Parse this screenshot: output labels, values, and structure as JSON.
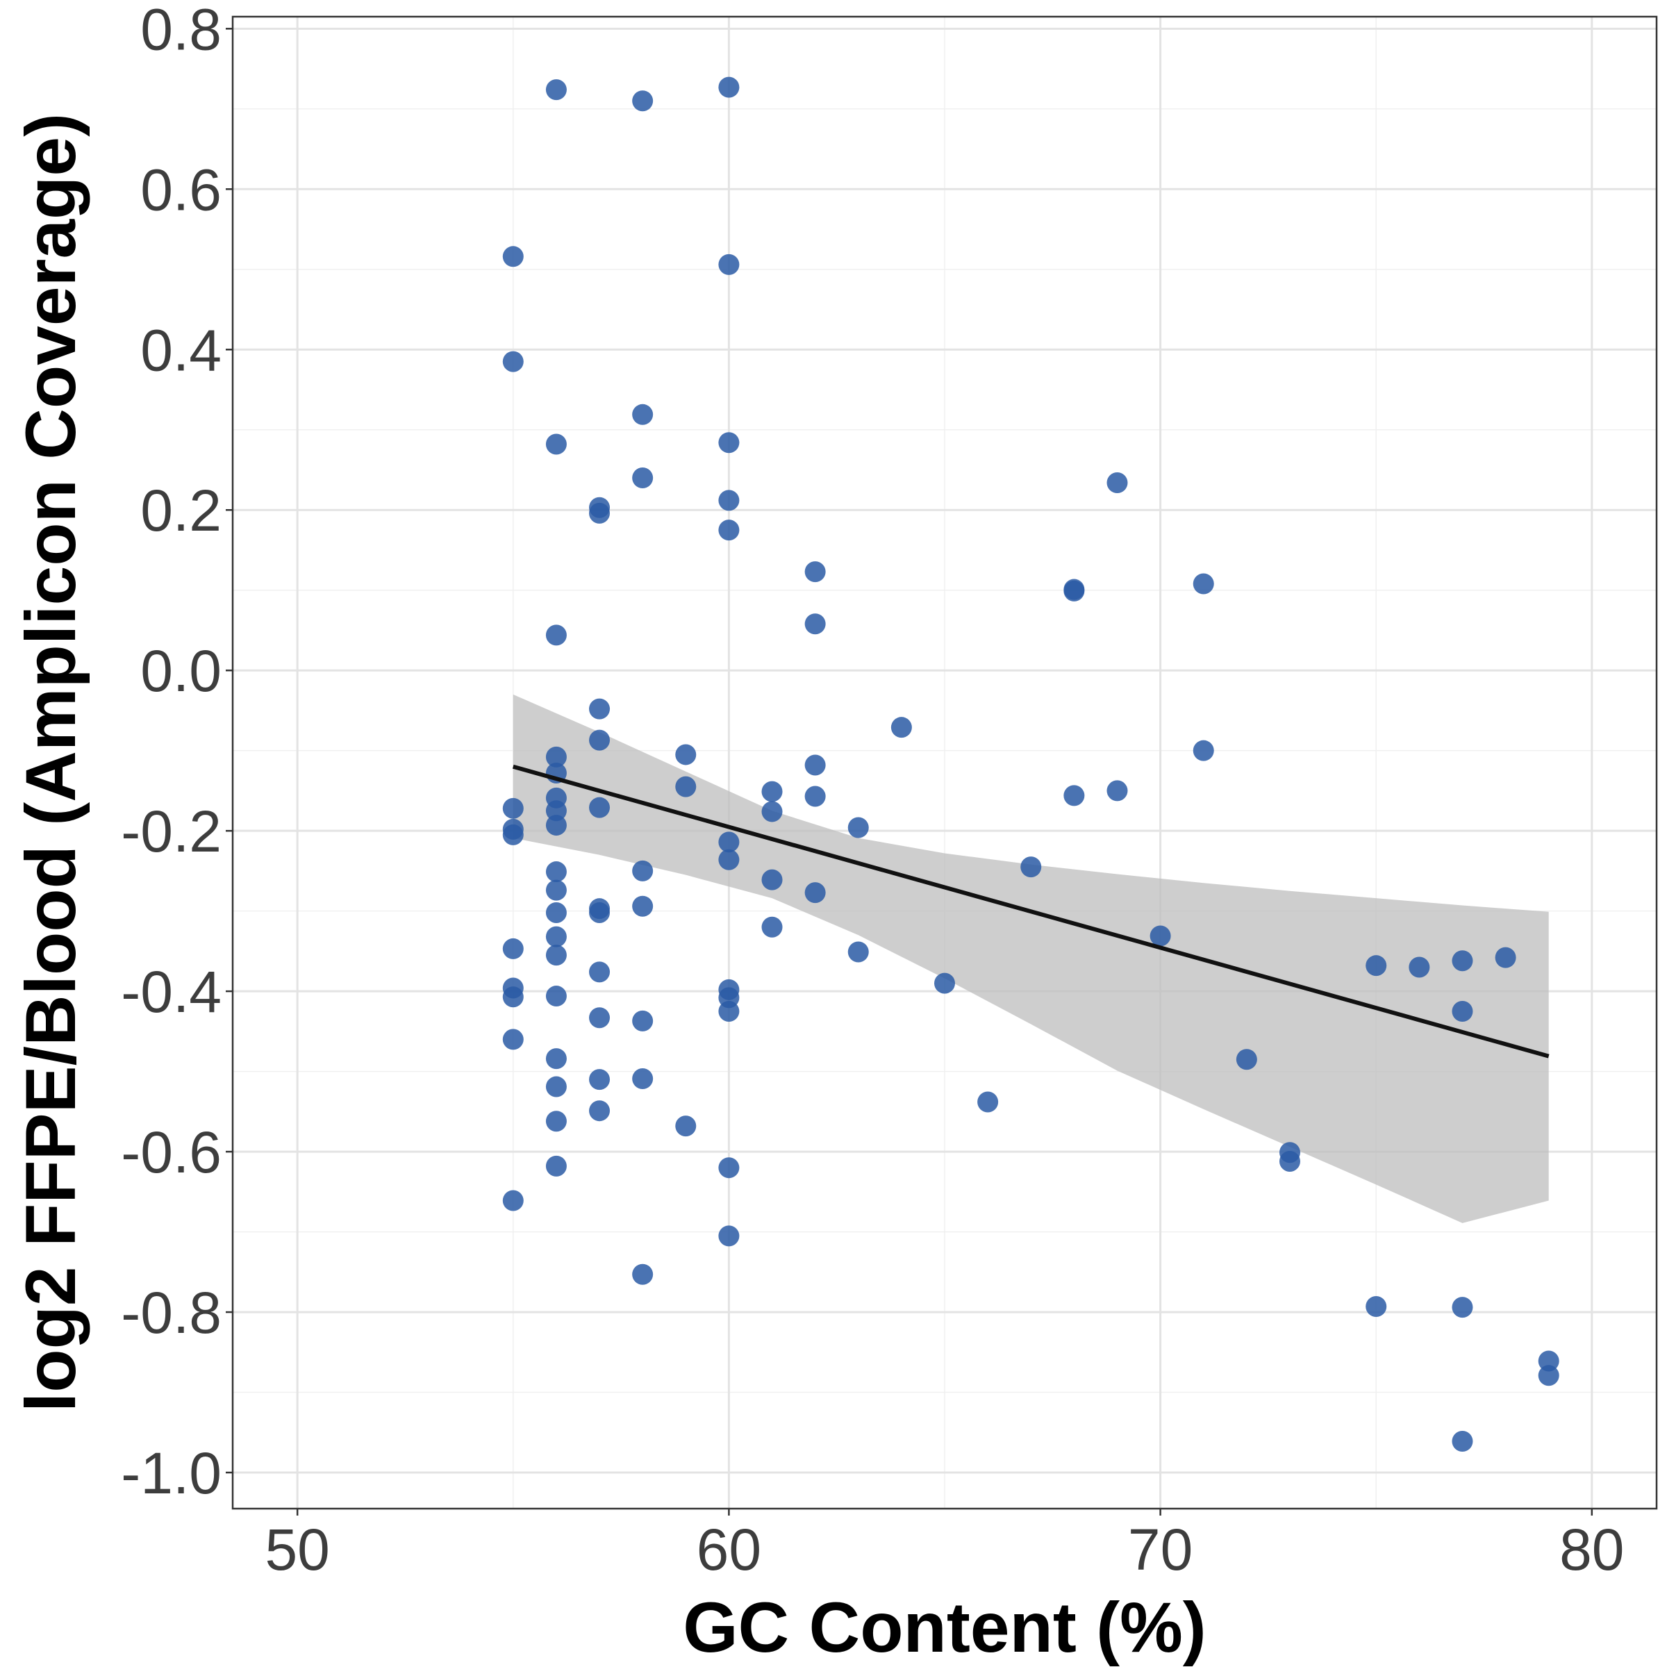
{
  "chart_data": {
    "type": "scatter",
    "title": "",
    "xlabel": "GC Content (%)",
    "ylabel": "log2 FFPE/Blood (Amplicon Coverage)",
    "xlim": [
      48.5,
      81.5
    ],
    "ylim": [
      -1.045,
      0.815
    ],
    "x_ticks": [
      50,
      60,
      70,
      80
    ],
    "x_tick_labels": [
      "50",
      "60",
      "70",
      "80"
    ],
    "y_ticks": [
      -1.0,
      -0.8,
      -0.6,
      -0.4,
      -0.2,
      0.0,
      0.2,
      0.4,
      0.6,
      0.8
    ],
    "y_tick_labels": [
      "-1.0",
      "-0.8",
      "-0.6",
      "-0.4",
      "-0.2",
      "0.0",
      "0.2",
      "0.4",
      "0.6",
      "0.8"
    ],
    "grid": true,
    "point_color": "#2a5aa5",
    "series": [
      {
        "points": [
          [
            55,
            0.516
          ],
          [
            55,
            0.385
          ],
          [
            55,
            -0.172
          ],
          [
            55,
            -0.198
          ],
          [
            55,
            -0.205
          ],
          [
            55,
            -0.347
          ],
          [
            55,
            -0.396
          ],
          [
            55,
            -0.407
          ],
          [
            55,
            -0.46
          ],
          [
            55,
            -0.661
          ],
          [
            56,
            0.724
          ],
          [
            56,
            0.282
          ],
          [
            56,
            0.044
          ],
          [
            56,
            -0.108
          ],
          [
            56,
            -0.128
          ],
          [
            56,
            -0.159
          ],
          [
            56,
            -0.175
          ],
          [
            56,
            -0.193
          ],
          [
            56,
            -0.251
          ],
          [
            56,
            -0.274
          ],
          [
            56,
            -0.302
          ],
          [
            56,
            -0.332
          ],
          [
            56,
            -0.355
          ],
          [
            56,
            -0.406
          ],
          [
            56,
            -0.484
          ],
          [
            56,
            -0.519
          ],
          [
            56,
            -0.562
          ],
          [
            56,
            -0.618
          ],
          [
            57,
            0.203
          ],
          [
            57,
            0.196
          ],
          [
            57,
            -0.048
          ],
          [
            57,
            -0.087
          ],
          [
            57,
            -0.171
          ],
          [
            57,
            -0.297
          ],
          [
            57,
            -0.302
          ],
          [
            57,
            -0.376
          ],
          [
            57,
            -0.433
          ],
          [
            57,
            -0.51
          ],
          [
            57,
            -0.549
          ],
          [
            58,
            0.71
          ],
          [
            58,
            0.319
          ],
          [
            58,
            0.24
          ],
          [
            58,
            -0.25
          ],
          [
            58,
            -0.294
          ],
          [
            58,
            -0.437
          ],
          [
            58,
            -0.509
          ],
          [
            58,
            -0.753
          ],
          [
            59,
            -0.105
          ],
          [
            59,
            -0.145
          ],
          [
            59,
            -0.568
          ],
          [
            60,
            0.727
          ],
          [
            60,
            0.506
          ],
          [
            60,
            0.284
          ],
          [
            60,
            0.212
          ],
          [
            60,
            0.175
          ],
          [
            60,
            -0.214
          ],
          [
            60,
            -0.236
          ],
          [
            60,
            -0.398
          ],
          [
            60,
            -0.408
          ],
          [
            60,
            -0.425
          ],
          [
            60,
            -0.62
          ],
          [
            60,
            -0.705
          ],
          [
            61,
            -0.151
          ],
          [
            61,
            -0.176
          ],
          [
            61,
            -0.261
          ],
          [
            61,
            -0.32
          ],
          [
            62,
            0.123
          ],
          [
            62,
            0.058
          ],
          [
            62,
            -0.118
          ],
          [
            62,
            -0.157
          ],
          [
            62,
            -0.277
          ],
          [
            63,
            -0.196
          ],
          [
            63,
            -0.351
          ],
          [
            64,
            -0.071
          ],
          [
            65,
            -0.39
          ],
          [
            66,
            -0.538
          ],
          [
            67,
            -0.245
          ],
          [
            68,
            0.101
          ],
          [
            68,
            0.099
          ],
          [
            68,
            -0.156
          ],
          [
            69,
            0.234
          ],
          [
            69,
            -0.15
          ],
          [
            70,
            -0.331
          ],
          [
            71,
            0.108
          ],
          [
            71,
            -0.1
          ],
          [
            72,
            -0.485
          ],
          [
            73,
            -0.601
          ],
          [
            73,
            -0.612
          ],
          [
            75,
            -0.368
          ],
          [
            75,
            -0.793
          ],
          [
            76,
            -0.37
          ],
          [
            77,
            -0.362
          ],
          [
            77,
            -0.425
          ],
          [
            77,
            -0.794
          ],
          [
            77,
            -0.961
          ],
          [
            78,
            -0.358
          ],
          [
            79,
            -0.861
          ],
          [
            79,
            -0.879
          ]
        ]
      }
    ],
    "trend_line": {
      "x": [
        55,
        79
      ],
      "y": [
        -0.12,
        -0.481
      ],
      "color": "#111111"
    },
    "confidence_band": {
      "x": [
        55,
        57,
        59,
        61,
        63,
        65,
        67,
        69,
        71,
        73,
        75,
        77,
        79
      ],
      "upper": [
        -0.03,
        -0.077,
        -0.126,
        -0.175,
        -0.209,
        -0.228,
        -0.242,
        -0.254,
        -0.265,
        -0.275,
        -0.284,
        -0.293,
        -0.301
      ],
      "lower": [
        -0.209,
        -0.23,
        -0.255,
        -0.284,
        -0.33,
        -0.384,
        -0.441,
        -0.499,
        -0.547,
        -0.594,
        -0.641,
        -0.689,
        -0.661
      ],
      "color": "#bdbdbd"
    }
  }
}
